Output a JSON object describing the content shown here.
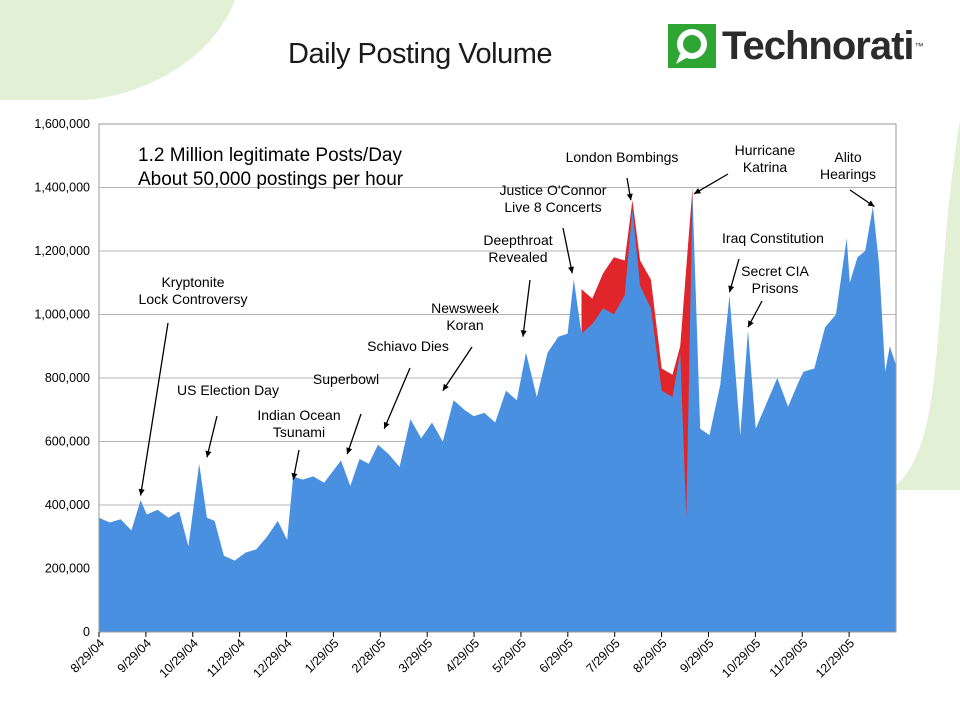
{
  "page": {
    "title": "Daily Posting Volume",
    "logo_text": "Technorati",
    "logo_tm": "™",
    "colors": {
      "series": "#4a90e0",
      "excess": "#e0262a",
      "background_decoration": "#dff0d2",
      "grid": "#b4b4b4"
    }
  },
  "chart_data": {
    "type": "area",
    "title": "Daily Posting Volume",
    "xlabel": "",
    "ylabel": "",
    "ylim": [
      0,
      1600000
    ],
    "yticks": [
      0,
      200000,
      400000,
      600000,
      800000,
      1000000,
      1200000,
      1400000,
      1600000
    ],
    "ytick_labels": [
      "0",
      "200,000",
      "400,000",
      "600,000",
      "800,000",
      "1,000,000",
      "1,200,000",
      "1,400,000",
      "1,600,000"
    ],
    "xlim": [
      "2004-08-29",
      "2006-01-28"
    ],
    "xtick_labels": [
      "8/29/04",
      "9/29/04",
      "10/29/04",
      "11/29/04",
      "12/29/04",
      "1/29/05",
      "2/28/05",
      "3/29/05",
      "4/29/05",
      "5/29/05",
      "6/29/05",
      "7/29/05",
      "8/29/05",
      "9/29/05",
      "10/29/05",
      "11/29/05",
      "12/29/05"
    ],
    "grid": true,
    "legend": "none",
    "headline": [
      "1.2 Million legitimate Posts/Day",
      "About 50,000 postings per hour"
    ],
    "series": [
      {
        "values": [
          [
            "2004-08-29",
            360000
          ],
          [
            "2004-09-05",
            345000
          ],
          [
            "2004-09-12",
            355000
          ],
          [
            "2004-09-19",
            320000
          ],
          [
            "2004-09-25",
            415000
          ],
          [
            "2004-09-29",
            370000
          ],
          [
            "2004-10-06",
            385000
          ],
          [
            "2004-10-13",
            360000
          ],
          [
            "2004-10-20",
            380000
          ],
          [
            "2004-10-26",
            270000
          ],
          [
            "2004-11-02",
            530000
          ],
          [
            "2004-11-07",
            360000
          ],
          [
            "2004-11-12",
            350000
          ],
          [
            "2004-11-18",
            240000
          ],
          [
            "2004-11-25",
            225000
          ],
          [
            "2004-12-02",
            250000
          ],
          [
            "2004-12-09",
            260000
          ],
          [
            "2004-12-16",
            300000
          ],
          [
            "2004-12-23",
            350000
          ],
          [
            "2004-12-29",
            290000
          ],
          [
            "2005-01-02",
            490000
          ],
          [
            "2005-01-08",
            480000
          ],
          [
            "2005-01-15",
            490000
          ],
          [
            "2005-01-22",
            470000
          ],
          [
            "2005-01-29",
            515000
          ],
          [
            "2005-02-02",
            540000
          ],
          [
            "2005-02-08",
            460000
          ],
          [
            "2005-02-14",
            545000
          ],
          [
            "2005-02-20",
            530000
          ],
          [
            "2005-02-26",
            590000
          ],
          [
            "2005-03-05",
            560000
          ],
          [
            "2005-03-12",
            520000
          ],
          [
            "2005-03-19",
            670000
          ],
          [
            "2005-03-26",
            610000
          ],
          [
            "2005-04-02",
            660000
          ],
          [
            "2005-04-09",
            600000
          ],
          [
            "2005-04-16",
            730000
          ],
          [
            "2005-04-23",
            700000
          ],
          [
            "2005-04-29",
            680000
          ],
          [
            "2005-05-06",
            690000
          ],
          [
            "2005-05-13",
            660000
          ],
          [
            "2005-05-20",
            760000
          ],
          [
            "2005-05-27",
            730000
          ],
          [
            "2005-06-02",
            880000
          ],
          [
            "2005-06-09",
            740000
          ],
          [
            "2005-06-16",
            880000
          ],
          [
            "2005-06-23",
            930000
          ],
          [
            "2005-06-29",
            940000
          ],
          [
            "2005-07-03",
            1110000
          ],
          [
            "2005-07-08",
            940000
          ],
          [
            "2005-07-15",
            970000
          ],
          [
            "2005-07-22",
            1020000
          ],
          [
            "2005-07-29",
            1000000
          ],
          [
            "2005-08-05",
            1060000
          ],
          [
            "2005-08-10",
            1330000
          ],
          [
            "2005-08-15",
            1090000
          ],
          [
            "2005-08-22",
            1020000
          ],
          [
            "2005-08-29",
            760000
          ],
          [
            "2005-09-05",
            740000
          ],
          [
            "2005-09-10",
            880000
          ],
          [
            "2005-09-14",
            360000
          ],
          [
            "2005-09-18",
            1380000
          ],
          [
            "2005-09-23",
            640000
          ],
          [
            "2005-09-29",
            620000
          ],
          [
            "2005-10-06",
            780000
          ],
          [
            "2005-10-12",
            1060000
          ],
          [
            "2005-10-19",
            620000
          ],
          [
            "2005-10-24",
            950000
          ],
          [
            "2005-10-29",
            640000
          ],
          [
            "2005-11-05",
            720000
          ],
          [
            "2005-11-12",
            800000
          ],
          [
            "2005-11-19",
            710000
          ],
          [
            "2005-11-26",
            790000
          ],
          [
            "2005-11-29",
            820000
          ],
          [
            "2005-12-06",
            830000
          ],
          [
            "2005-12-13",
            960000
          ],
          [
            "2005-12-20",
            1000000
          ],
          [
            "2005-12-27",
            1240000
          ],
          [
            "2005-12-29",
            1100000
          ],
          [
            "2006-01-03",
            1180000
          ],
          [
            "2006-01-08",
            1200000
          ],
          [
            "2006-01-13",
            1340000
          ],
          [
            "2006-01-17",
            1160000
          ],
          [
            "2006-01-21",
            820000
          ],
          [
            "2006-01-24",
            900000
          ],
          [
            "2006-01-28",
            840000
          ]
        ]
      }
    ],
    "excess_series": {
      "values": [
        [
          "2005-07-08",
          1080000
        ],
        [
          "2005-07-15",
          1050000
        ],
        [
          "2005-07-22",
          1130000
        ],
        [
          "2005-07-29",
          1180000
        ],
        [
          "2005-08-05",
          1170000
        ],
        [
          "2005-08-10",
          1360000
        ],
        [
          "2005-08-15",
          1170000
        ],
        [
          "2005-08-22",
          1110000
        ],
        [
          "2005-08-29",
          830000
        ],
        [
          "2005-09-05",
          810000
        ],
        [
          "2005-09-10",
          900000
        ],
        [
          "2005-09-18",
          1400000
        ]
      ]
    },
    "annotations": [
      {
        "lines": [
          "Kryptonite",
          "Lock Controversy"
        ],
        "date": "2004-09-25",
        "value": 430000
      },
      {
        "lines": [
          "US Election Day"
        ],
        "date": "2004-11-07",
        "value": 550000
      },
      {
        "lines": [
          "Indian Ocean",
          "Tsunami"
        ],
        "date": "2005-01-02",
        "value": 480000
      },
      {
        "lines": [
          "Superbowl"
        ],
        "date": "2005-02-06",
        "value": 560000
      },
      {
        "lines": [
          "Schiavo Dies"
        ],
        "date": "2005-03-02",
        "value": 640000
      },
      {
        "lines": [
          "Newsweek",
          "Koran"
        ],
        "date": "2005-04-09",
        "value": 760000
      },
      {
        "lines": [
          "Deepthroat",
          "Revealed"
        ],
        "date": "2005-05-31",
        "value": 930000
      },
      {
        "lines": [
          "Justice O'Connor",
          "Live 8 Concerts"
        ],
        "date": "2005-07-02",
        "value": 1130000
      },
      {
        "lines": [
          "London Bombings"
        ],
        "date": "2005-08-09",
        "value": 1360000
      },
      {
        "lines": [
          "Hurricane",
          "Katrina"
        ],
        "date": "2005-09-19",
        "value": 1380000
      },
      {
        "lines": [
          "Iraq Constitution"
        ],
        "date": "2005-10-12",
        "value": 1070000
      },
      {
        "lines": [
          "Secret CIA",
          "Prisons"
        ],
        "date": "2005-10-24",
        "value": 960000
      },
      {
        "lines": [
          "Alito",
          "Hearings"
        ],
        "date": "2006-01-14",
        "value": 1340000
      }
    ]
  }
}
